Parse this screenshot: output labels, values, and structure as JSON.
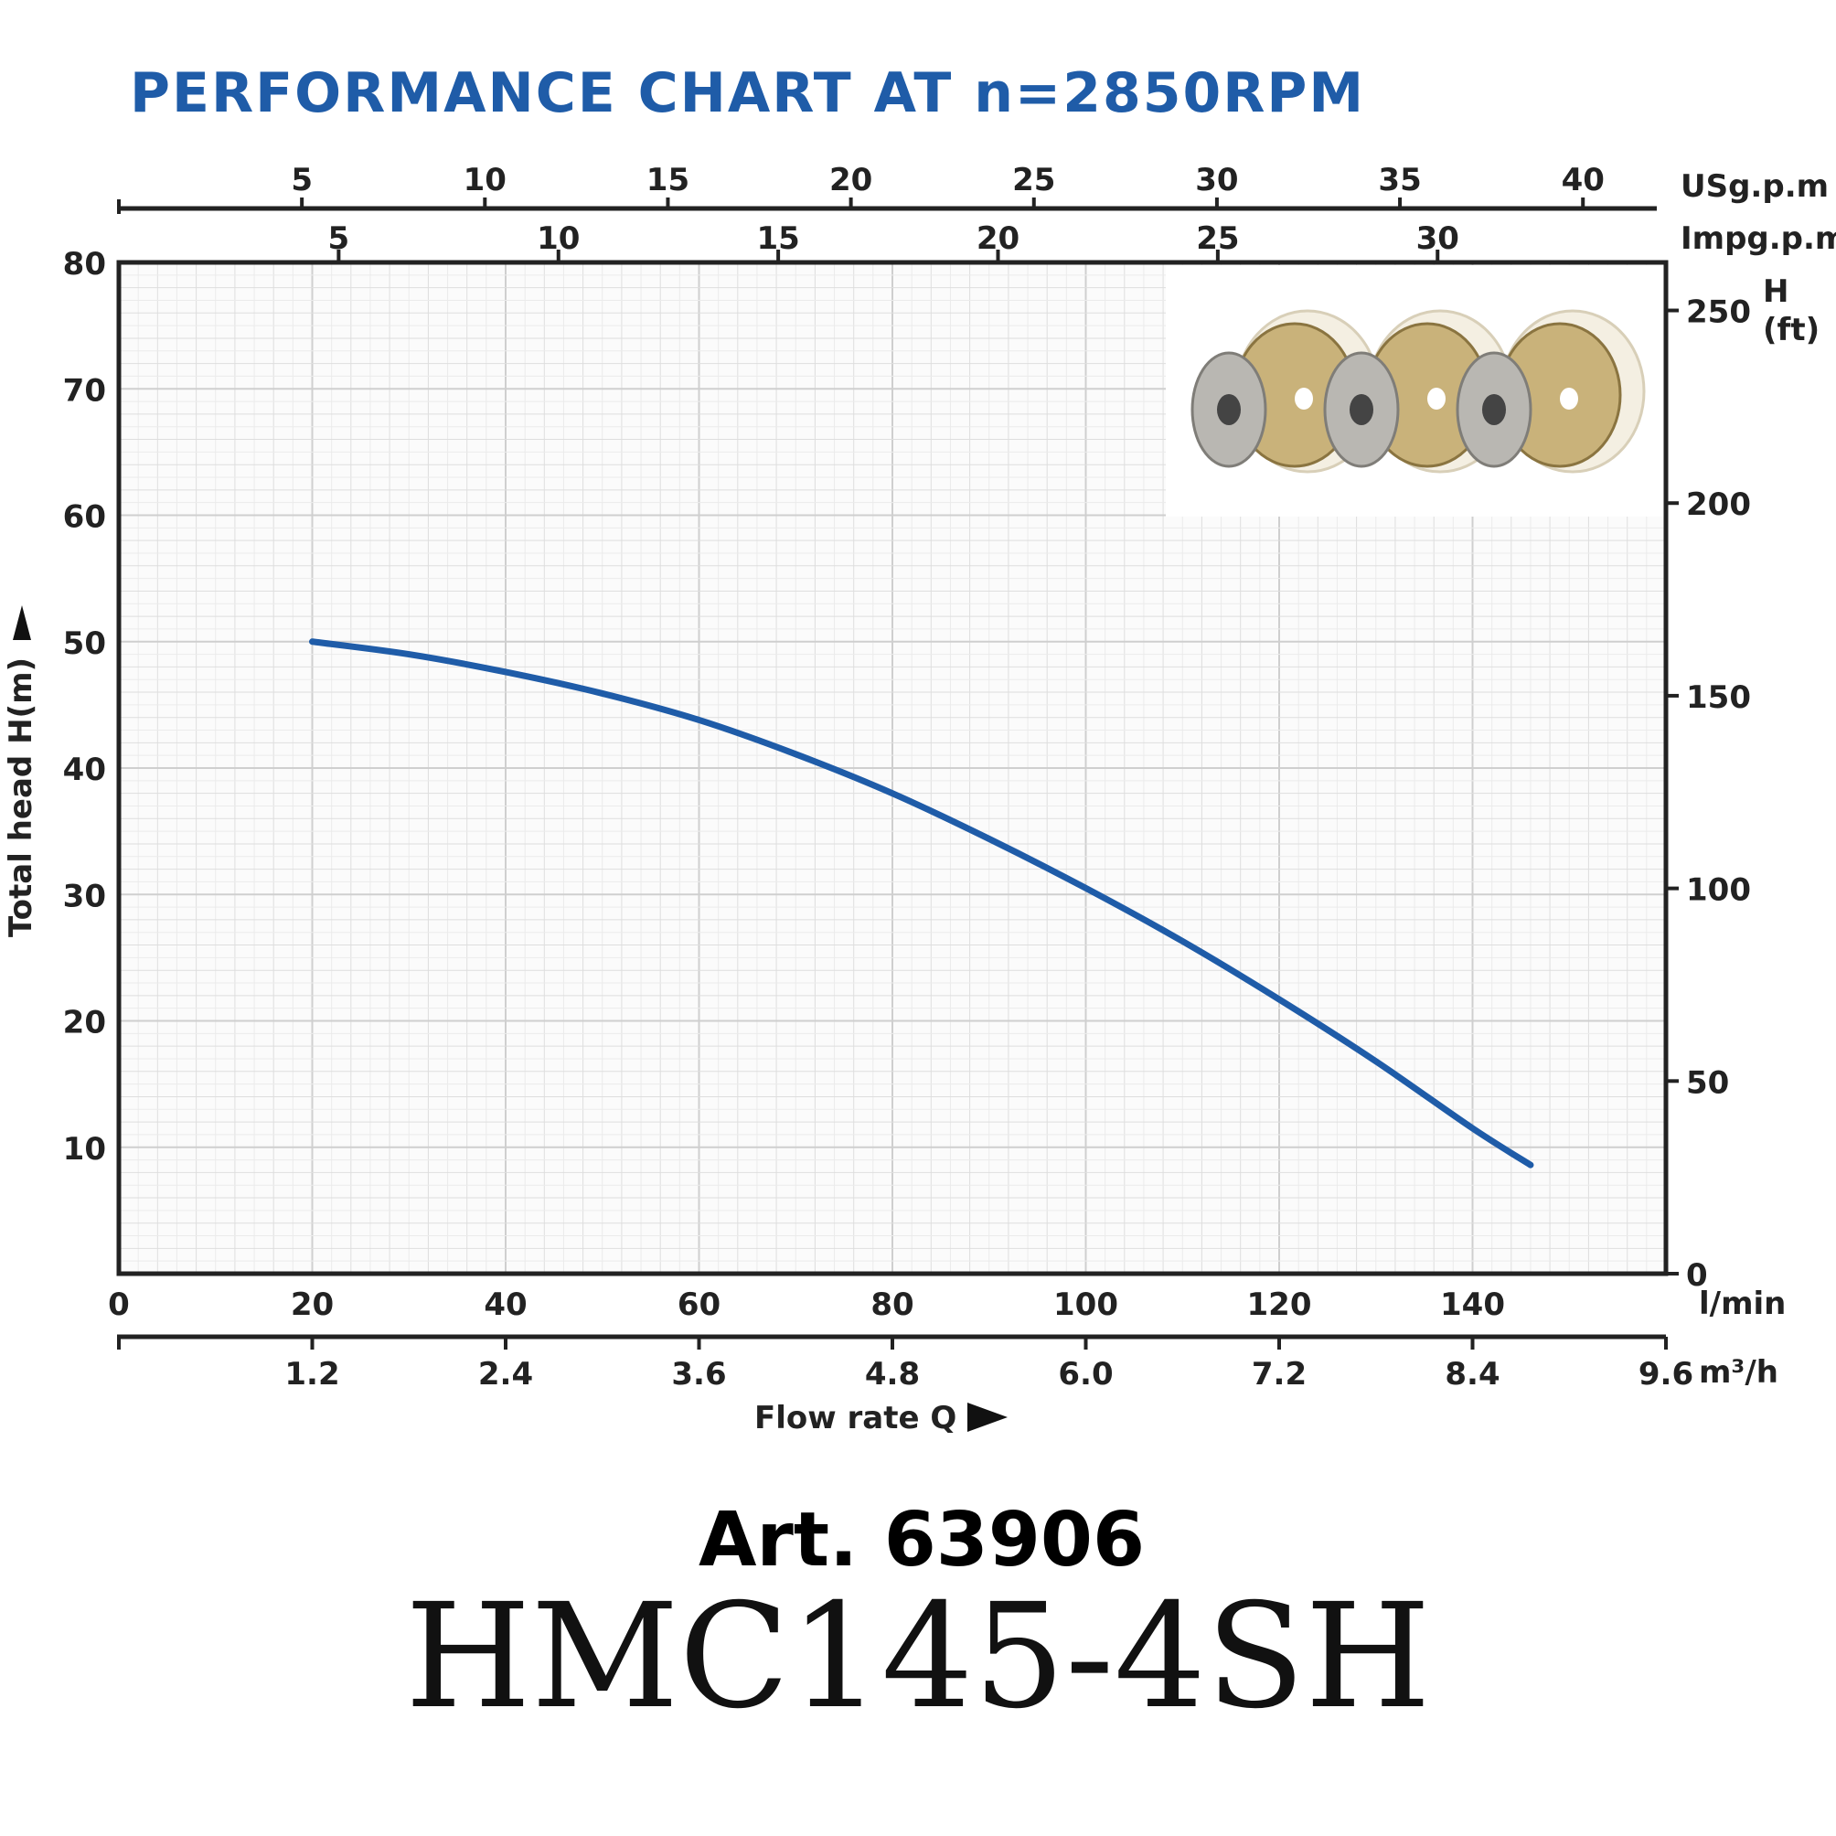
{
  "chart_data": {
    "type": "line",
    "title": "PERFORMANCE CHART AT n=2850RPM",
    "x": [
      20,
      30,
      40,
      50,
      60,
      70,
      80,
      90,
      100,
      110,
      120,
      130,
      140,
      146
    ],
    "series": [
      {
        "values": [
          50,
          49,
          47.6,
          45.9,
          43.8,
          41.1,
          38,
          34.4,
          30.5,
          26.3,
          21.7,
          16.8,
          11.5,
          8.6
        ]
      }
    ],
    "xlabel": "Flow rate Q",
    "ylabel": "Total  head H(m)",
    "xlim": [
      0,
      160
    ],
    "ylim": [
      0,
      80
    ],
    "grid": true,
    "line_color": "#1f5ca8",
    "axes": {
      "bottom": {
        "unit": "l/min",
        "ticks": [
          0,
          20,
          40,
          60,
          80,
          100,
          120,
          140
        ]
      },
      "bottom_secondary": {
        "unit": "m³/h",
        "ticks": [
          "1.2",
          "2.4",
          "3.6",
          "4.8",
          "6.0",
          "7.2",
          "8.4",
          "9.6"
        ]
      },
      "top": {
        "unit": "USg.p.m",
        "ticks": [
          5,
          10,
          15,
          20,
          25,
          30,
          35,
          40
        ]
      },
      "top_secondary": {
        "unit": "Impg.p.m",
        "ticks": [
          5,
          10,
          15,
          20,
          25,
          30
        ]
      },
      "left": {
        "ticks": [
          10,
          20,
          30,
          40,
          50,
          60,
          70,
          80
        ]
      },
      "right": {
        "unit_line1": "H",
        "unit_line2": "(ft)",
        "ticks": [
          0,
          50,
          100,
          150,
          200,
          250
        ]
      }
    }
  },
  "product": {
    "article": "Art. 63906",
    "model": "HMC145-4SH",
    "image_icon": "impeller-stages-photo"
  }
}
